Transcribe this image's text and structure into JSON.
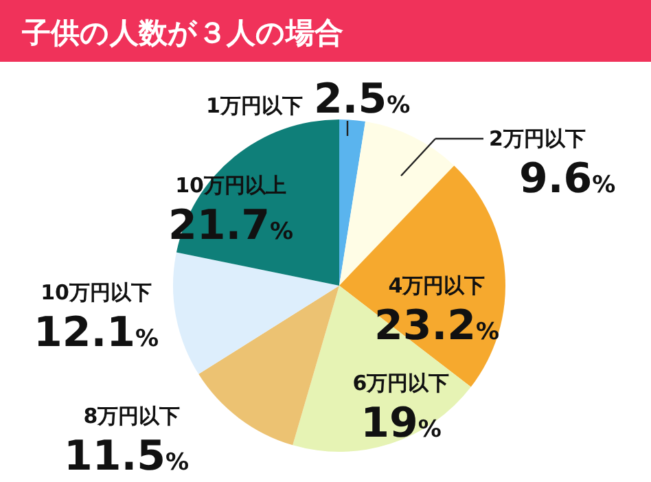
{
  "chart_data": {
    "type": "pie",
    "title": "子供の人数が３人の場合",
    "categories": [
      "1万円以下",
      "2万円以下",
      "4万円以下",
      "6万円以下",
      "8万円以下",
      "10万円以下",
      "10万円以上"
    ],
    "values": [
      2.5,
      9.6,
      23.2,
      19,
      11.5,
      12.1,
      21.7
    ],
    "value_labels": [
      "2.5%",
      "9.6%",
      "23.2%",
      "19%",
      "11.5%",
      "12.1%",
      "21.7%"
    ],
    "colors": [
      "#5ab4ee",
      "#fffde6",
      "#f6a92e",
      "#e6f3b4",
      "#ecc272",
      "#ddeefc",
      "#0f7f79"
    ]
  }
}
